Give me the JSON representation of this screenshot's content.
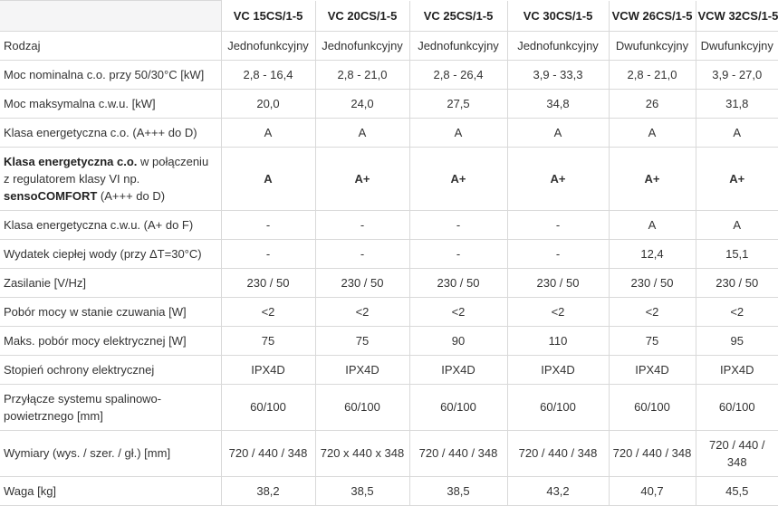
{
  "colors": {
    "grid_border": "#d9d9d9",
    "corner_cell_bg": "#f5f5f6",
    "text": "#333333"
  },
  "table": {
    "corner_label": "",
    "columns": [
      "VC 15CS/1-5",
      "VC 20CS/1-5",
      "VC 25CS/1-5",
      "VC 30CS/1-5",
      "VCW 26CS/1-5",
      "VCW 32CS/1-5"
    ],
    "rows": [
      {
        "label": "Rodzaj",
        "values": [
          "Jednofunkcyjny",
          "Jednofunkcyjny",
          "Jednofunkcyjny",
          "Jednofunkcyjny",
          "Dwufunkcyjny",
          "Dwufunkcyjny"
        ]
      },
      {
        "label": "Moc nominalna c.o. przy 50/30°C [kW]",
        "values": [
          "2,8 - 16,4",
          "2,8 - 21,0",
          "2,8 - 26,4",
          "3,9 - 33,3",
          "2,8 - 21,0",
          "3,9 - 27,0"
        ]
      },
      {
        "label": "Moc maksymalna c.w.u. [kW]",
        "values": [
          "20,0",
          "24,0",
          "27,5",
          "34,8",
          "26",
          "31,8"
        ]
      },
      {
        "label": "Klasa energetyczna c.o. (A+++ do D)",
        "values": [
          "A",
          "A",
          "A",
          "A",
          "A",
          "A"
        ]
      },
      {
        "segments": [
          {
            "text": "Klasa energetyczna c.o.",
            "bold": true
          },
          {
            "text": " w połączeniu z regulatorem klasy VI np. ",
            "bold": false
          },
          {
            "text": "sensoCOMFORT",
            "bold": true
          },
          {
            "text": " (A+++ do D)",
            "bold": false
          }
        ],
        "bold_values": true,
        "values": [
          "A",
          "A+",
          "A+",
          "A+",
          "A+",
          "A+"
        ]
      },
      {
        "label": "Klasa energetyczna c.w.u. (A+ do F)",
        "values": [
          "-",
          "-",
          "-",
          "-",
          "A",
          "A"
        ]
      },
      {
        "label": "Wydatek ciepłej wody (przy ΔT=30°C)",
        "values": [
          "-",
          "-",
          "-",
          "-",
          "12,4",
          "15,1"
        ]
      },
      {
        "label": "Zasilanie [V/Hz]",
        "values": [
          "230 / 50",
          "230 / 50",
          "230 / 50",
          "230 / 50",
          "230 / 50",
          "230 / 50"
        ]
      },
      {
        "label": "Pobór mocy w stanie czuwania [W]",
        "values": [
          "<2",
          "<2",
          "<2",
          "<2",
          "<2",
          "<2"
        ]
      },
      {
        "label": "Maks. pobór mocy elektrycznej [W]",
        "values": [
          "75",
          "75",
          "90",
          "110",
          "75",
          "95"
        ]
      },
      {
        "label": "Stopień ochrony elektrycznej",
        "values": [
          "IPX4D",
          "IPX4D",
          "IPX4D",
          "IPX4D",
          "IPX4D",
          "IPX4D"
        ]
      },
      {
        "label": "Przyłącze systemu spalinowo-powietrznego [mm]",
        "values": [
          "60/100",
          "60/100",
          "60/100",
          "60/100",
          "60/100",
          "60/100"
        ]
      },
      {
        "label": "Wymiary (wys. / szer. / gł.) [mm]",
        "values": [
          "720 / 440 / 348",
          "720 x 440 x 348",
          "720 / 440 / 348",
          "720 / 440 / 348",
          "720 / 440 / 348",
          "720 / 440 / 348"
        ]
      },
      {
        "label": "Waga [kg]",
        "values": [
          "38,2",
          "38,5",
          "38,5",
          "43,2",
          "40,7",
          "45,5"
        ]
      }
    ]
  }
}
